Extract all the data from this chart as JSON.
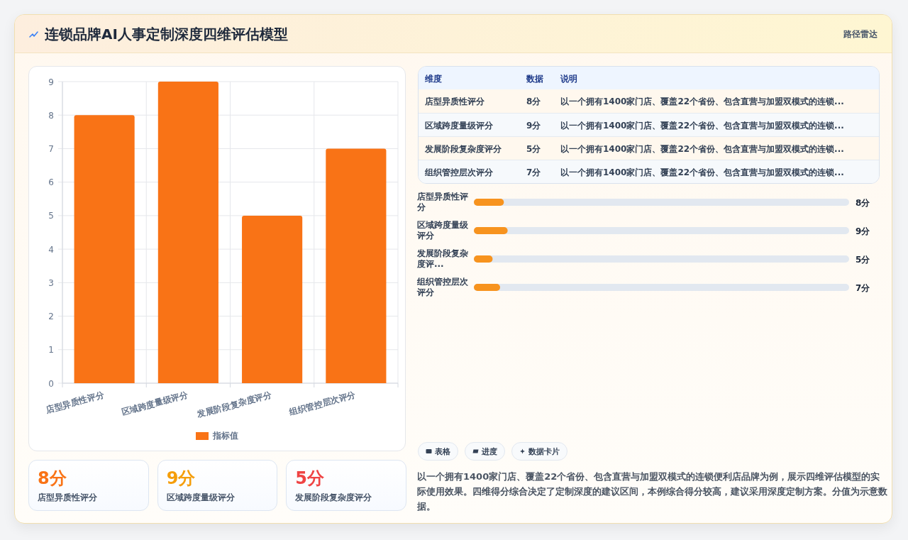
{
  "chart_data": [
    {
      "type": "other",
      "title": "连锁品牌AI人事定制深度四维评估模型",
      "annotations": [
        "路径雷达"
      ]
    },
    {
      "type": "bar",
      "categories": [
        "店型异质性评分",
        "区域跨度量级评分",
        "发展阶段复杂度评分",
        "组织管控层次评分"
      ],
      "series": [
        {
          "name": "指标值",
          "color": "#f97316",
          "values": [
            8,
            9,
            5,
            7
          ]
        }
      ],
      "ylim": [
        0,
        9
      ],
      "yticks": [
        0,
        1,
        2,
        3,
        4,
        5,
        6,
        7,
        8,
        9
      ],
      "grid": true,
      "legend": "bottom"
    },
    {
      "type": "other",
      "categories": [
        "店型异质性评分",
        "区域跨度量级评分",
        "发展阶段复杂度评分"
      ],
      "value_labels": [
        "8分",
        "9分",
        "5分"
      ],
      "colors": [
        "#f97316",
        "#f59e0b",
        "#ef4444"
      ]
    },
    {
      "type": "other",
      "categories": [
        "维度",
        "数据",
        "说明"
      ],
      "cell_labels": [
        [
          "店型异质性评分",
          "8分",
          "以一个拥有1400家门店、覆盖22个省份、包含直营与加盟双模式的连锁..."
        ],
        [
          "区域跨度量级评分",
          "9分",
          "以一个拥有1400家门店、覆盖22个省份、包含直营与加盟双模式的连锁..."
        ],
        [
          "发展阶段复杂度评分",
          "5分",
          "以一个拥有1400家门店、覆盖22个省份、包含直营与加盟双模式的连锁..."
        ],
        [
          "组织管控层次评分",
          "7分",
          "以一个拥有1400家门店、覆盖22个省份、包含直营与加盟双模式的连锁..."
        ]
      ]
    },
    {
      "type": "bar",
      "orientation": "horizontal",
      "categories": [
        "店型异质性评分",
        "区域跨度量级评分",
        "发展阶段复杂度评...",
        "组织管控层次评分"
      ],
      "series": [
        {
          "color": "#f7931e",
          "values": [
            8,
            9,
            5,
            7
          ],
          "value_labels": [
            "8分",
            "9分",
            "5分",
            "7分"
          ]
        }
      ],
      "xlim": [
        0,
        100
      ]
    },
    {
      "type": "other",
      "categories": [
        "表格",
        "进度",
        "数据卡片"
      ],
      "annotations": [
        "以一个拥有1400家门店、覆盖22个省份、包含直营与加盟双模式的连锁便利店品牌为例，展示四维评估模型的实际使用效果。四维得分综合决定了定制深度的建议区间，本例综合得分较高，建议采用深度定制方案。分值为示意数据。"
      ]
    }
  ]
}
